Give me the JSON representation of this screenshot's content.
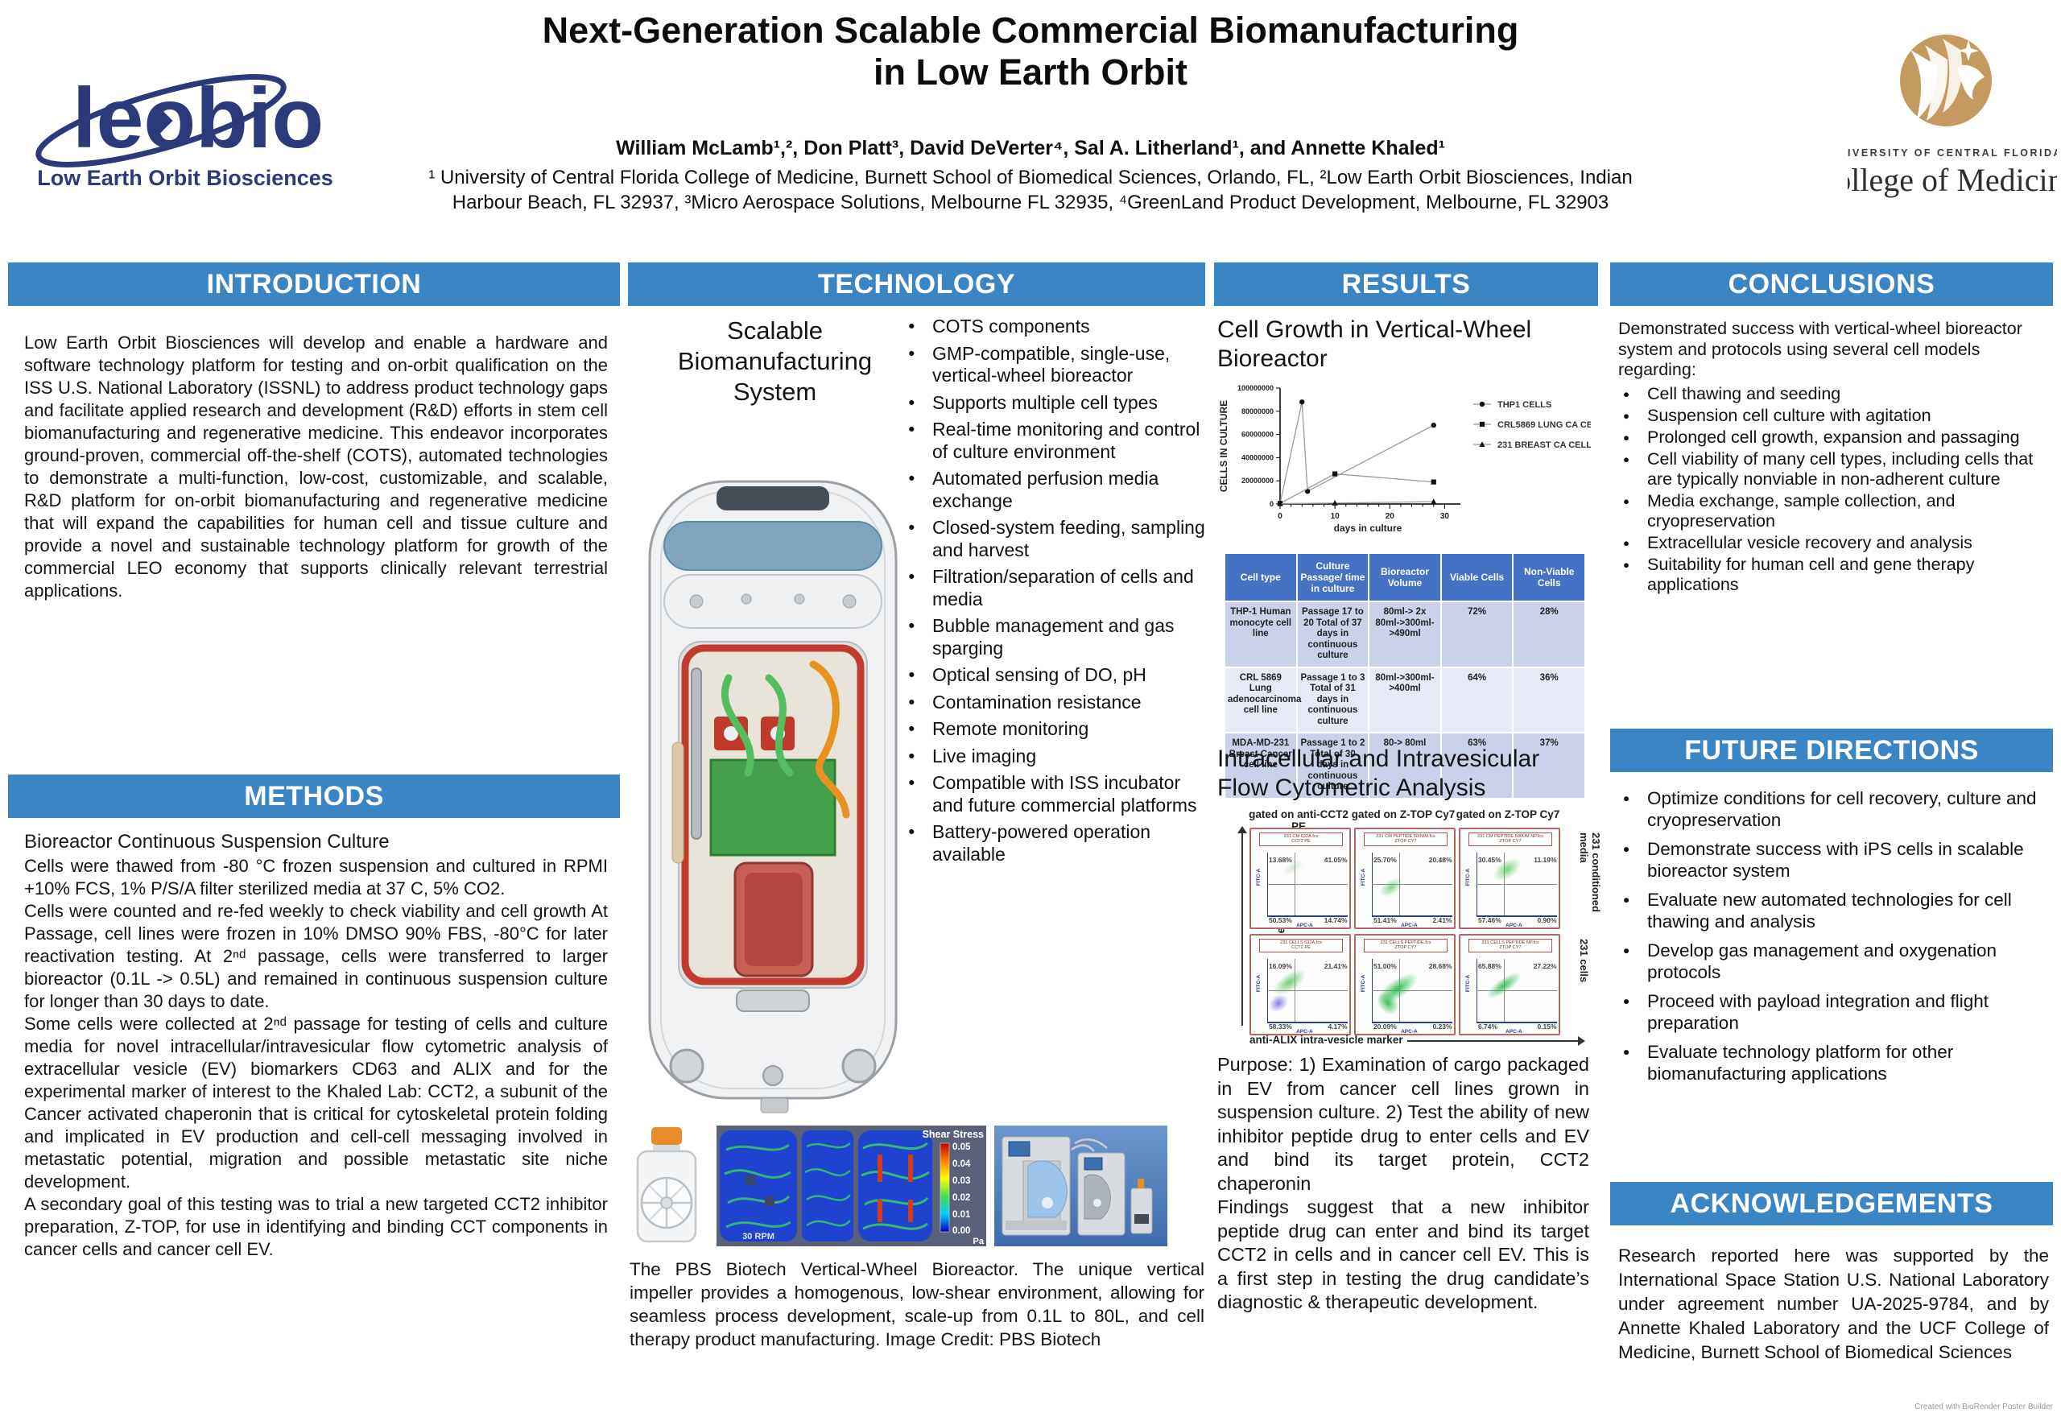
{
  "colors": {
    "header_blue": "#3a86c4",
    "logo_navy": "#2c3a7c",
    "ucf_gold": "#c49a5e",
    "table_header_blue": "#4472c4",
    "table_row_a": "#c9d2e9",
    "table_row_b": "#e7eaf6"
  },
  "header": {
    "title1": "Next-Generation Scalable Commercial Biomanufacturing",
    "title2": "in Low Earth Orbit",
    "authors": "William McLamb¹,², Don Platt³, David DeVerter⁴, Sal A. Litherland¹, and Annette Khaled¹",
    "affil1": "¹ University of Central Florida College of Medicine, Burnett School of Biomedical Sciences, Orlando, FL, ²Low Earth Orbit Biosciences, Indian",
    "affil2": "Harbour Beach, FL 32937, ³Micro Aerospace Solutions, Melbourne FL 32935, ⁴GreenLand Product Development, Melbourne, FL 32903",
    "logo": {
      "wordmark": "leobio",
      "tagline": "Low Earth Orbit Biosciences"
    },
    "ucf": {
      "line1": "UNIVERSITY OF CENTRAL FLORIDA",
      "line2": "College of Medicine"
    }
  },
  "sections": {
    "intro": {
      "title": "INTRODUCTION",
      "body": "Low Earth Orbit Biosciences will develop and enable a hardware and software technology platform for testing and on-orbit qualification on the ISS U.S. National Laboratory (ISSNL) to address product technology gaps and facilitate applied research and development (R&D) efforts in stem cell biomanufacturing and regenerative medicine. This endeavor incorporates ground-proven, commercial off-the-shelf (COTS), automated technologies to demonstrate a multi-function, low-cost, customizable, and scalable, R&D platform for on-orbit biomanufacturing and regenerative medicine that will expand the capabilities for human cell and tissue culture and provide a novel and sustainable technology platform for growth of the commercial LEO economy that supports clinically relevant terrestrial applications."
    },
    "methods": {
      "title": "METHODS",
      "subtitle": "Bioreactor Continuous Suspension Culture",
      "p1": "Cells were thawed from -80 °C frozen suspension and cultured in RPMI +10% FCS, 1% P/S/A filter sterilized media at 37 C, 5% CO2.",
      "p2": "Cells were counted and re-fed weekly to check viability and cell growth At Passage, cell lines were frozen in 10% DMSO 90% FBS, -80°C for later reactivation testing. At 2ⁿᵈ passage, cells were transferred to larger bioreactor (0.1L -> 0.5L) and remained in continuous suspension culture for longer than 30 days to date.",
      "p3": "Some cells were collected at 2ⁿᵈ passage for testing of cells and culture media for novel intracellular/intravesicular flow cytometric analysis of extracellular vesicle (EV) biomarkers CD63 and ALIX and for the experimental marker of interest to the Khaled Lab: CCT2, a subunit of the Cancer activated chaperonin that is critical for cytoskeletal protein folding and implicated in EV production and cell-cell messaging involved in metastatic potential, migration and possible metastatic site niche development.",
      "p4": "A secondary goal of this testing  was to trial a new targeted CCT2 inhibitor preparation, Z-TOP, for use in identifying and binding CCT components in cancer cells and cancer cell EV."
    },
    "technology": {
      "title": "TECHNOLOGY",
      "subtitle": "Scalable Biomanufacturing System",
      "bullets": [
        "COTS components",
        "GMP-compatible, single-use, vertical-wheel bioreactor",
        "Supports multiple cell types",
        "Real-time monitoring and control of culture environment",
        "Automated perfusion media exchange",
        "Closed-system feeding, sampling and harvest",
        "Filtration/separation of cells and media",
        "Bubble management and gas sparging",
        "Optical sensing of DO, pH",
        "Contamination resistance",
        "Remote monitoring",
        "Live imaging",
        "Compatible with ISS incubator and  future commercial platforms",
        "Battery-powered operation available"
      ],
      "cfd": {
        "title": "Shear Stress",
        "ticks": [
          "0.05",
          "0.04",
          "0.03",
          "0.02",
          "0.01",
          "0.00"
        ],
        "units": "Pa",
        "rpm": "30 RPM"
      },
      "caption": "The PBS Biotech  Vertical-Wheel Bioreactor. The unique vertical impeller provides a homogenous, low-shear environment, allowing for seamless process development, scale-up from 0.1L to 80L, and cell therapy product manufacturing. Image Credit: PBS Biotech"
    },
    "results": {
      "title": "RESULTS",
      "sub1": "Cell Growth in Vertical-Wheel Bioreactor",
      "sub2": "Intracellular and Intravesicular Flow Cytometric Analysis",
      "table": {
        "headers": [
          "Cell type",
          "Culture Passage/ time in culture",
          "Bioreactor Volume",
          "Viable Cells",
          "Non-Viable Cells"
        ],
        "rows": [
          [
            "THP-1 Human monocyte cell line",
            "Passage 17 to 20 Total of 37 days in continuous culture",
            "80ml-> 2x 80ml->300ml->490ml",
            "72%",
            "28%"
          ],
          [
            "CRL 5869 Lung adenocarcinoma cell line",
            "Passage 1 to 3 Total of 31 days in continuous culture",
            "80ml->300ml->400ml",
            "64%",
            "36%"
          ],
          [
            "MDA-MD-231 Breast Cancer cell line",
            "Passage 1 to 2 Total of 30 days in continuous culture",
            "80-> 80ml",
            "63%",
            "37%"
          ]
        ]
      },
      "flow": {
        "col_headers": [
          "gated on anti-CCT2 PE",
          "gated on Z-TOP Cy7",
          "gated on Z-TOP Cy7"
        ],
        "row_labels": [
          "231 conditioned media",
          "231 cells"
        ],
        "y_axis_label": "anti-CD63 vesicle surface marker",
        "x_axis_label": "anti-ALIX intra-vesicle marker",
        "panel_y_label": "FITC-A",
        "panel_x_label": "APC-A",
        "panels": [
          {
            "title1": "231 CM 632A.fcs",
            "title2": "CCT2 PE",
            "ul": "13.68%",
            "ur": "41.05%",
            "ll": "50.53%",
            "lr": "14.74%"
          },
          {
            "title1": "231 CM PEPTIDE 500UM.fcs",
            "title2": "ZTOP CY7",
            "ul": "25.70%",
            "ur": "20.48%",
            "ll": "51.41%",
            "lr": "2.41%"
          },
          {
            "title1": "231 CM PEPTIDE 500UM NP.fcs",
            "title2": "ZTOP CY7",
            "ul": "30.45%",
            "ur": "11.19%",
            "ll": "57.46%",
            "lr": "0.90%"
          },
          {
            "title1": "231 CELLS 632A.fcs",
            "title2": "CCT2 PE",
            "ul": "16.09%",
            "ur": "21.41%",
            "ll": "58.33%",
            "lr": "4.17%"
          },
          {
            "title1": "231 CELLS PEPTIDE.fcs",
            "title2": "ZTOP CY7",
            "ul": "51.00%",
            "ur": "28.68%",
            "ll": "20.09%",
            "lr": "0.23%"
          },
          {
            "title1": "231 CELLS PEPTIDE NP.fcs",
            "title2": "ZTOP CY7",
            "ul": "65.88%",
            "ur": "27.22%",
            "ll": "6.74%",
            "lr": "0.15%"
          }
        ]
      },
      "purpose1": "Purpose:  1)  Examination of cargo packaged in EV from cancer cell lines grown in suspension culture. 2) Test the ability of new inhibitor peptide drug to enter cells and EV and bind its target protein, CCT2 chaperonin",
      "purpose2": "Findings suggest that a new inhibitor peptide drug can enter and bind its target CCT2 in cells and in cancer cell EV. This is a first step in testing the drug candidate’s diagnostic & therapeutic development."
    },
    "conclusions": {
      "title": "CONCLUSIONS",
      "lead": "Demonstrated success with vertical-wheel bioreactor system and protocols using several cell models regarding:",
      "bullets": [
        "Cell thawing and seeding",
        "Suspension cell culture with agitation",
        "Prolonged cell growth, expansion and passaging",
        "Cell viability of many cell types, including cells that are typically nonviable in non-adherent culture",
        "Media exchange, sample collection, and cryopreservation",
        "Extracellular vesicle recovery and analysis",
        "Suitability for human cell and gene therapy applications"
      ]
    },
    "future": {
      "title": "FUTURE DIRECTIONS",
      "bullets": [
        "Optimize conditions for cell recovery, culture and cryopreservation",
        "Demonstrate success with iPS cells in scalable bioreactor system",
        "Evaluate new automated technologies for cell thawing and analysis",
        "Develop gas management and oxygenation protocols",
        "Proceed with payload integration and flight preparation",
        "Evaluate technology platform for other biomanufacturing applications"
      ]
    },
    "ack": {
      "title": "ACKNOWLEDGEMENTS",
      "body": "Research reported here was supported by the International Space Station U.S. National Laboratory under agreement number UA-2025-9784, and by Annette Khaled Laboratory and the UCF College of Medicine, Burnett School of Biomedical Sciences"
    }
  },
  "chart_data": {
    "type": "line",
    "title": "",
    "xlabel": "days in culture",
    "ylabel": "CELLS IN CULTURE",
    "xlim": [
      0,
      32
    ],
    "ylim": [
      0,
      100000000
    ],
    "xticks": [
      0,
      10,
      20,
      30
    ],
    "yticks": [
      0,
      20000000,
      40000000,
      60000000,
      80000000,
      100000000
    ],
    "grid": false,
    "legend_position": "right",
    "series": [
      {
        "name": "THP1 CELLS",
        "marker": "circle",
        "points": [
          [
            0,
            500000
          ],
          [
            4,
            88000000
          ],
          [
            5,
            11000000
          ],
          [
            28,
            68000000
          ]
        ]
      },
      {
        "name": "CRL5869 LUNG CA CELLS",
        "marker": "square",
        "points": [
          [
            0,
            500000
          ],
          [
            10,
            26000000
          ],
          [
            28,
            19000000
          ]
        ]
      },
      {
        "name": "231 BREAST CA CELLS",
        "marker": "triangle",
        "points": [
          [
            0,
            300000
          ],
          [
            10,
            800000
          ],
          [
            28,
            2000000
          ]
        ]
      }
    ]
  },
  "footer": {
    "credit": "Created with BioRender Poster Builder"
  }
}
